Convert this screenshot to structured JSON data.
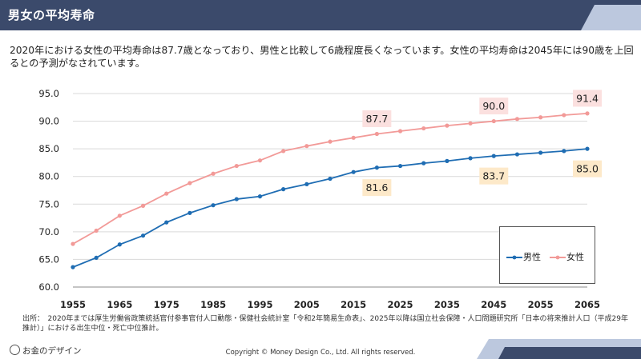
{
  "header": {
    "title": "男女の平均寿命"
  },
  "description": "2020年における女性の平均寿命は87.7歳となっており、男性と比較して6歳程度長くなっています。女性の平均寿命は2045年には90歳を上回るとの予測がなされています。",
  "colors": {
    "header_bg": "#3b4a6b",
    "header_stripe": "#bcc8de",
    "male": "#1f6db3",
    "female": "#f29a98",
    "callout_male": "#fde9c9",
    "callout_female": "#fbe0df"
  },
  "chart_data": {
    "type": "line",
    "x": [
      1955,
      1960,
      1965,
      1970,
      1975,
      1980,
      1985,
      1990,
      1995,
      2000,
      2005,
      2010,
      2015,
      2020,
      2025,
      2030,
      2035,
      2040,
      2045,
      2050,
      2055,
      2060,
      2065
    ],
    "series": [
      {
        "name": "男性",
        "values": [
          63.6,
          65.3,
          67.7,
          69.3,
          71.7,
          73.4,
          74.8,
          75.9,
          76.4,
          77.7,
          78.6,
          79.6,
          80.8,
          81.6,
          81.9,
          82.4,
          82.8,
          83.3,
          83.7,
          84.0,
          84.3,
          84.6,
          85.0
        ]
      },
      {
        "name": "女性",
        "values": [
          67.8,
          70.2,
          72.9,
          74.7,
          76.9,
          78.8,
          80.5,
          81.9,
          82.9,
          84.6,
          85.5,
          86.3,
          87.0,
          87.7,
          88.2,
          88.7,
          89.2,
          89.6,
          90.0,
          90.4,
          90.7,
          91.1,
          91.4
        ]
      }
    ],
    "ylim": [
      60,
      95
    ],
    "yticks": [
      "60.0",
      "65.0",
      "70.0",
      "75.0",
      "80.0",
      "85.0",
      "90.0",
      "95.0"
    ],
    "xticks": [
      "1955",
      "1965",
      "1975",
      "1985",
      "1995",
      "2005",
      "2015",
      "2025",
      "2035",
      "2045",
      "2055",
      "2065"
    ],
    "annotations": [
      {
        "series": 1,
        "x": 2020,
        "label": "87.7"
      },
      {
        "series": 1,
        "x": 2045,
        "label": "90.0"
      },
      {
        "series": 1,
        "x": 2065,
        "label": "91.4"
      },
      {
        "series": 0,
        "x": 2020,
        "label": "81.6"
      },
      {
        "series": 0,
        "x": 2045,
        "label": "83.7"
      },
      {
        "series": 0,
        "x": 2065,
        "label": "85.0"
      }
    ],
    "grid": true,
    "legend": "lower-right"
  },
  "legend": {
    "male": "男性",
    "female": "女性"
  },
  "source": "出所：　2020年までは厚生労働省政策統括官付参事官付人口動態・保健社会統計室「令和2年簡易生命表」、2025年以降は国立社会保障・人口問題研究所「日本の将来推計人口（平成29年推計）」における出生中位・死亡中位推計。",
  "logo": "お金のデザイン",
  "copyright": "Copyright © Money Design Co., Ltd. All rights reserved."
}
